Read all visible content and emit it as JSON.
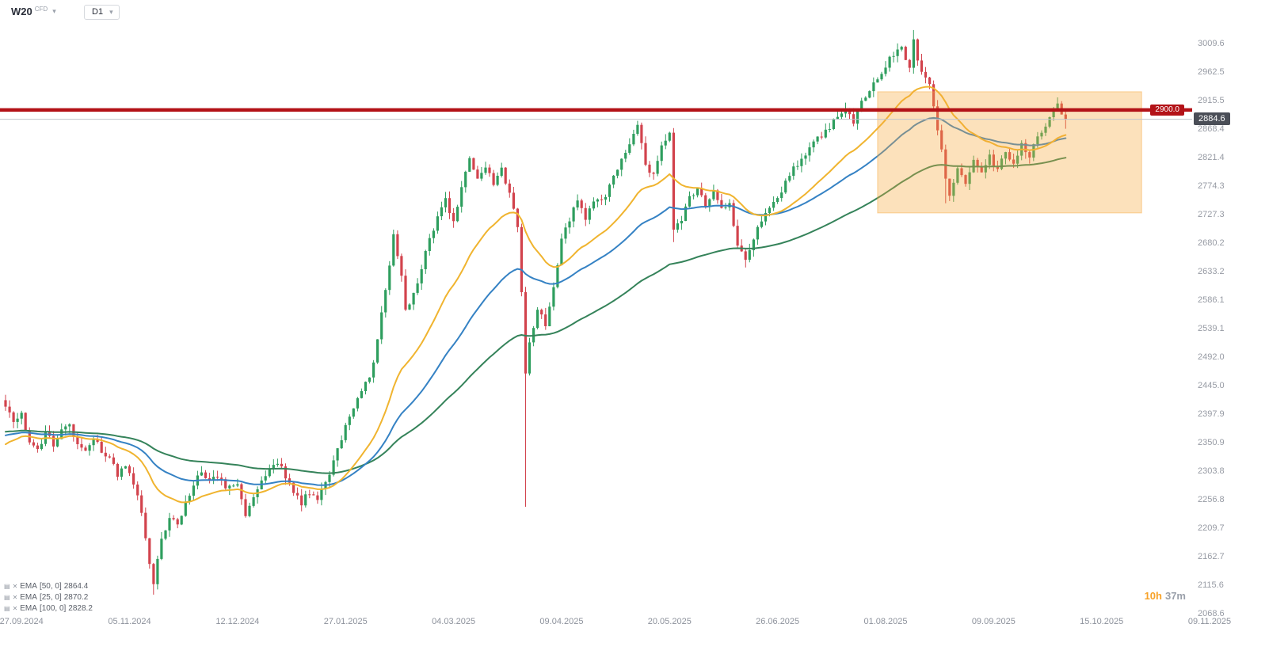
{
  "toolbar": {
    "symbol": "W20",
    "symbol_type": "CFD",
    "timeframe": "D1"
  },
  "icons": {
    "chevron_down": "▾",
    "indicator_settings": "▤",
    "indicator_remove": "✕"
  },
  "legend": {
    "items": [
      {
        "name": "EMA",
        "params": "[50, 0]",
        "value": "2864.4"
      },
      {
        "name": "EMA",
        "params": "[25, 0]",
        "value": "2870.2"
      },
      {
        "name": "EMA",
        "params": "[100, 0]",
        "value": "2828.2"
      }
    ]
  },
  "countdown": {
    "hours": "10h",
    "minutes": "37m"
  },
  "chart_data": {
    "type": "candlestick",
    "instrument": "W20",
    "timeframe": "D1",
    "grid": false,
    "legend_position": "bottom-left",
    "y_axis": {
      "min": 2068.6,
      "max": 3009.6
    },
    "y_ticks": [
      "3009.6",
      "2962.5",
      "2915.5",
      "2868.4",
      "2821.4",
      "2774.3",
      "2727.3",
      "2680.2",
      "2633.2",
      "2586.1",
      "2539.1",
      "2492.0",
      "2445.0",
      "2397.9",
      "2350.9",
      "2303.8",
      "2256.8",
      "2209.7",
      "2162.7",
      "2115.6",
      "2068.6"
    ],
    "x_ticks": [
      {
        "label": "27.09.2024",
        "i": 4
      },
      {
        "label": "05.11.2024",
        "i": 31
      },
      {
        "label": "12.12.2024",
        "i": 58
      },
      {
        "label": "27.01.2025",
        "i": 85
      },
      {
        "label": "04.03.2025",
        "i": 112
      },
      {
        "label": "09.04.2025",
        "i": 139
      },
      {
        "label": "20.05.2025",
        "i": 166
      },
      {
        "label": "26.06.2025",
        "i": 193
      },
      {
        "label": "01.08.2025",
        "i": 220
      },
      {
        "label": "09.09.2025",
        "i": 247
      },
      {
        "label": "15.10.2025",
        "i": 274
      },
      {
        "label": "09.11.2025",
        "i": 301
      }
    ],
    "price_line": {
      "value": 2900.0,
      "label": "2900.0"
    },
    "current_price": {
      "value": 2884.6,
      "label": "2884.6"
    },
    "highlight_box": {
      "x_start_index": 218,
      "x_end_index": 284,
      "y_top": 2930,
      "y_bottom": 2730,
      "color": "#f7a83b",
      "opacity": 0.35
    },
    "emas": [
      {
        "period": 100,
        "color": "#35835a",
        "start_value": 2368,
        "last_value": 2828.2
      },
      {
        "period": 50,
        "color": "#3582c4",
        "start_value": 2361,
        "last_value": 2864.4
      },
      {
        "period": 25,
        "color": "#f0b42f",
        "start_value": 2343,
        "last_value": 2870.2
      }
    ],
    "colors": {
      "up": "#2e9e5e",
      "down": "#d2434d",
      "resistance": "#b31217",
      "current_price_line": "#c0c3c9",
      "current_tag_bg": "#4a4e57"
    },
    "candles": {
      "count": 266,
      "close_jitter": 6,
      "wick_max": 11,
      "path_anchors": [
        [
          0,
          2415
        ],
        [
          2,
          2380
        ],
        [
          4,
          2395
        ],
        [
          6,
          2355
        ],
        [
          8,
          2340
        ],
        [
          10,
          2368
        ],
        [
          12,
          2350
        ],
        [
          14,
          2372
        ],
        [
          16,
          2380
        ],
        [
          18,
          2352
        ],
        [
          20,
          2335
        ],
        [
          22,
          2355
        ],
        [
          24,
          2340
        ],
        [
          26,
          2322
        ],
        [
          28,
          2300
        ],
        [
          30,
          2312
        ],
        [
          32,
          2278
        ],
        [
          34,
          2240
        ],
        [
          36,
          2150
        ],
        [
          37,
          2122
        ],
        [
          39,
          2195
        ],
        [
          41,
          2228
        ],
        [
          43,
          2212
        ],
        [
          45,
          2256
        ],
        [
          47,
          2282
        ],
        [
          49,
          2302
        ],
        [
          51,
          2286
        ],
        [
          53,
          2298
        ],
        [
          55,
          2280
        ],
        [
          58,
          2284
        ],
        [
          60,
          2235
        ],
        [
          62,
          2262
        ],
        [
          64,
          2285
        ],
        [
          66,
          2305
        ],
        [
          68,
          2318
        ],
        [
          70,
          2295
        ],
        [
          72,
          2268
        ],
        [
          74,
          2252
        ],
        [
          76,
          2270
        ],
        [
          78,
          2262
        ],
        [
          80,
          2285
        ],
        [
          82,
          2318
        ],
        [
          84,
          2360
        ],
        [
          86,
          2398
        ],
        [
          88,
          2422
        ],
        [
          90,
          2450
        ],
        [
          92,
          2478
        ],
        [
          94,
          2560
        ],
        [
          96,
          2640
        ],
        [
          97,
          2692
        ],
        [
          99,
          2622
        ],
        [
          100,
          2566
        ],
        [
          102,
          2598
        ],
        [
          104,
          2640
        ],
        [
          106,
          2688
        ],
        [
          108,
          2725
        ],
        [
          110,
          2752
        ],
        [
          112,
          2712
        ],
        [
          114,
          2775
        ],
        [
          116,
          2822
        ],
        [
          118,
          2785
        ],
        [
          120,
          2808
        ],
        [
          122,
          2772
        ],
        [
          124,
          2800
        ],
        [
          126,
          2762
        ],
        [
          128,
          2712
        ],
        [
          129,
          2605
        ],
        [
          130,
          2465
        ],
        [
          131,
          2520
        ],
        [
          133,
          2572
        ],
        [
          135,
          2542
        ],
        [
          137,
          2612
        ],
        [
          139,
          2682
        ],
        [
          141,
          2722
        ],
        [
          143,
          2752
        ],
        [
          145,
          2718
        ],
        [
          147,
          2748
        ],
        [
          150,
          2762
        ],
        [
          153,
          2800
        ],
        [
          156,
          2848
        ],
        [
          158,
          2872
        ],
        [
          160,
          2812
        ],
        [
          162,
          2790
        ],
        [
          164,
          2842
        ],
        [
          166,
          2860
        ],
        [
          167,
          2705
        ],
        [
          169,
          2722
        ],
        [
          171,
          2752
        ],
        [
          173,
          2765
        ],
        [
          175,
          2742
        ],
        [
          177,
          2768
        ],
        [
          179,
          2735
        ],
        [
          181,
          2745
        ],
        [
          183,
          2672
        ],
        [
          185,
          2655
        ],
        [
          187,
          2690
        ],
        [
          189,
          2720
        ],
        [
          192,
          2748
        ],
        [
          195,
          2780
        ],
        [
          198,
          2812
        ],
        [
          201,
          2840
        ],
        [
          204,
          2858
        ],
        [
          207,
          2882
        ],
        [
          210,
          2905
        ],
        [
          212,
          2880
        ],
        [
          214,
          2912
        ],
        [
          216,
          2932
        ],
        [
          218,
          2952
        ],
        [
          220,
          2972
        ],
        [
          222,
          2992
        ],
        [
          224,
          3002
        ],
        [
          226,
          2975
        ],
        [
          227,
          3012
        ],
        [
          229,
          2962
        ],
        [
          231,
          2938
        ],
        [
          233,
          2872
        ],
        [
          235,
          2792
        ],
        [
          236,
          2762
        ],
        [
          238,
          2805
        ],
        [
          240,
          2782
        ],
        [
          242,
          2815
        ],
        [
          244,
          2795
        ],
        [
          246,
          2822
        ],
        [
          248,
          2800
        ],
        [
          250,
          2832
        ],
        [
          252,
          2812
        ],
        [
          254,
          2845
        ],
        [
          256,
          2825
        ],
        [
          258,
          2852
        ],
        [
          260,
          2872
        ],
        [
          262,
          2898
        ],
        [
          263,
          2912
        ],
        [
          264,
          2895
        ],
        [
          265,
          2884.6
        ]
      ],
      "overrides": {
        "37": {
          "low": 2100
        },
        "130": {
          "close": 2465,
          "low": 2245
        },
        "167": {
          "low": 2682
        },
        "185": {
          "low": 2640
        },
        "227": {
          "high": 3032
        },
        "235": {
          "low": 2746
        },
        "265": {
          "close": 2884.6,
          "high": 2897,
          "low": 2869
        }
      }
    }
  }
}
